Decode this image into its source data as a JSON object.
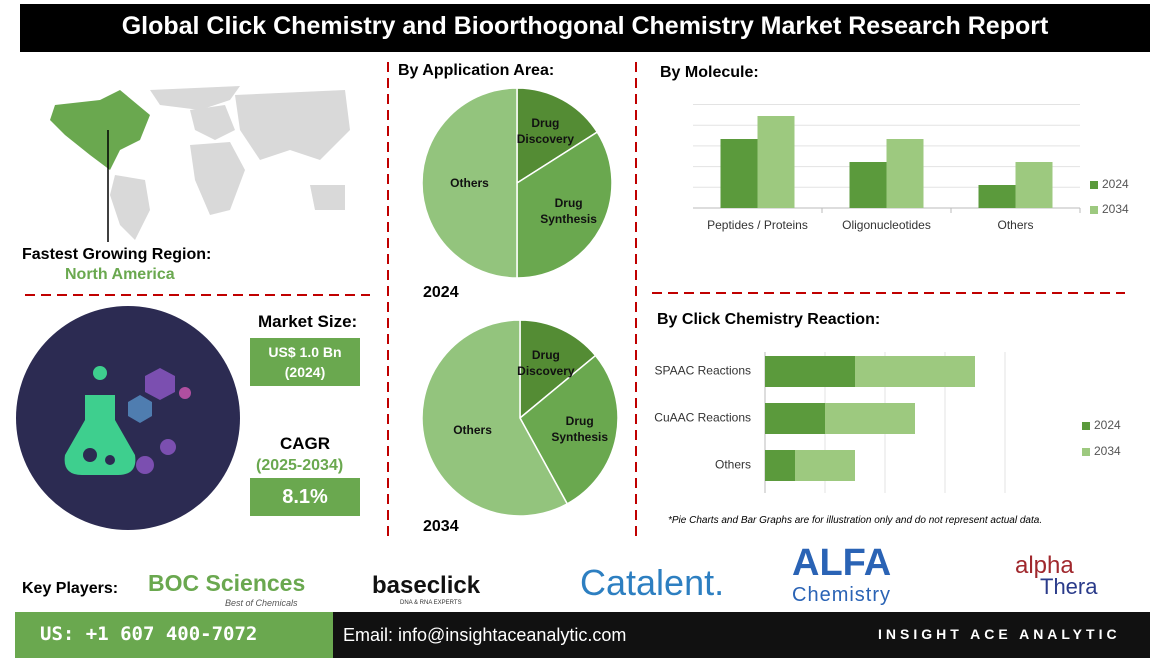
{
  "header": {
    "title": "Global Click Chemistry and Bioorthogonal Chemistry Market Research Report"
  },
  "region": {
    "label": "Fastest Growing Region:",
    "value": "North America"
  },
  "market": {
    "size_label": "Market Size:",
    "size_value": "US$ 1.0 Bn",
    "size_year": "(2024)",
    "cagr_label": "CAGR",
    "cagr_period": "(2025-2034)",
    "cagr_value": "8.1%"
  },
  "chart_data": [
    {
      "type": "pie",
      "title": "By Application Area:",
      "subtitle": "2024",
      "categories": [
        "Drug Discovery",
        "Drug Synthesis",
        "Others"
      ],
      "values": [
        16,
        34,
        50
      ],
      "colors": [
        "#548c34",
        "#6aa84f",
        "#93c47d"
      ]
    },
    {
      "type": "pie",
      "subtitle": "2034",
      "categories": [
        "Drug Discovery",
        "Drug Synthesis",
        "Others"
      ],
      "values": [
        14,
        28,
        58
      ],
      "colors": [
        "#548c34",
        "#6aa84f",
        "#93c47d"
      ]
    },
    {
      "type": "bar",
      "title": "By Molecule:",
      "categories": [
        "Peptides / Proteins",
        "Oligonucleotides",
        "Others"
      ],
      "series": [
        {
          "name": "2024",
          "color": "#5b9a3c",
          "values": [
            3,
            2,
            1
          ]
        },
        {
          "name": "2034",
          "color": "#9dc97f",
          "values": [
            4,
            3,
            2
          ]
        }
      ],
      "ylim": [
        0,
        4.5
      ]
    },
    {
      "type": "hbar-stacked",
      "title": "By Click Chemistry Reaction:",
      "categories": [
        "SPAAC Reactions",
        "CuAAC Reactions",
        "Others"
      ],
      "series": [
        {
          "name": "2024",
          "color": "#5b9a3c",
          "values": [
            1.5,
            1,
            0.5
          ]
        },
        {
          "name": "2034",
          "color": "#9dc97f",
          "values": [
            2,
            1.5,
            1
          ]
        }
      ],
      "xlim": [
        0,
        4
      ]
    }
  ],
  "note": "*Pie Charts and Bar Graphs are for illustration only and do not represent actual data.",
  "key_players": {
    "label": "Key Players:",
    "logos": [
      {
        "name": "BOC Sciences",
        "tagline": "Best of Chemicals"
      },
      {
        "name": "baseclick",
        "tagline": "DNA & RNA EXPERTS"
      },
      {
        "name": "Catalent."
      },
      {
        "name": "ALFA",
        "tagline": "Chemistry"
      },
      {
        "name": "alpha",
        "tagline": "Thera"
      }
    ]
  },
  "footer": {
    "phone": "US: +1 607 400-7072",
    "email": "Email: info@insightaceanalytic.com",
    "brand": "INSIGHT ACE ANALYTIC"
  }
}
